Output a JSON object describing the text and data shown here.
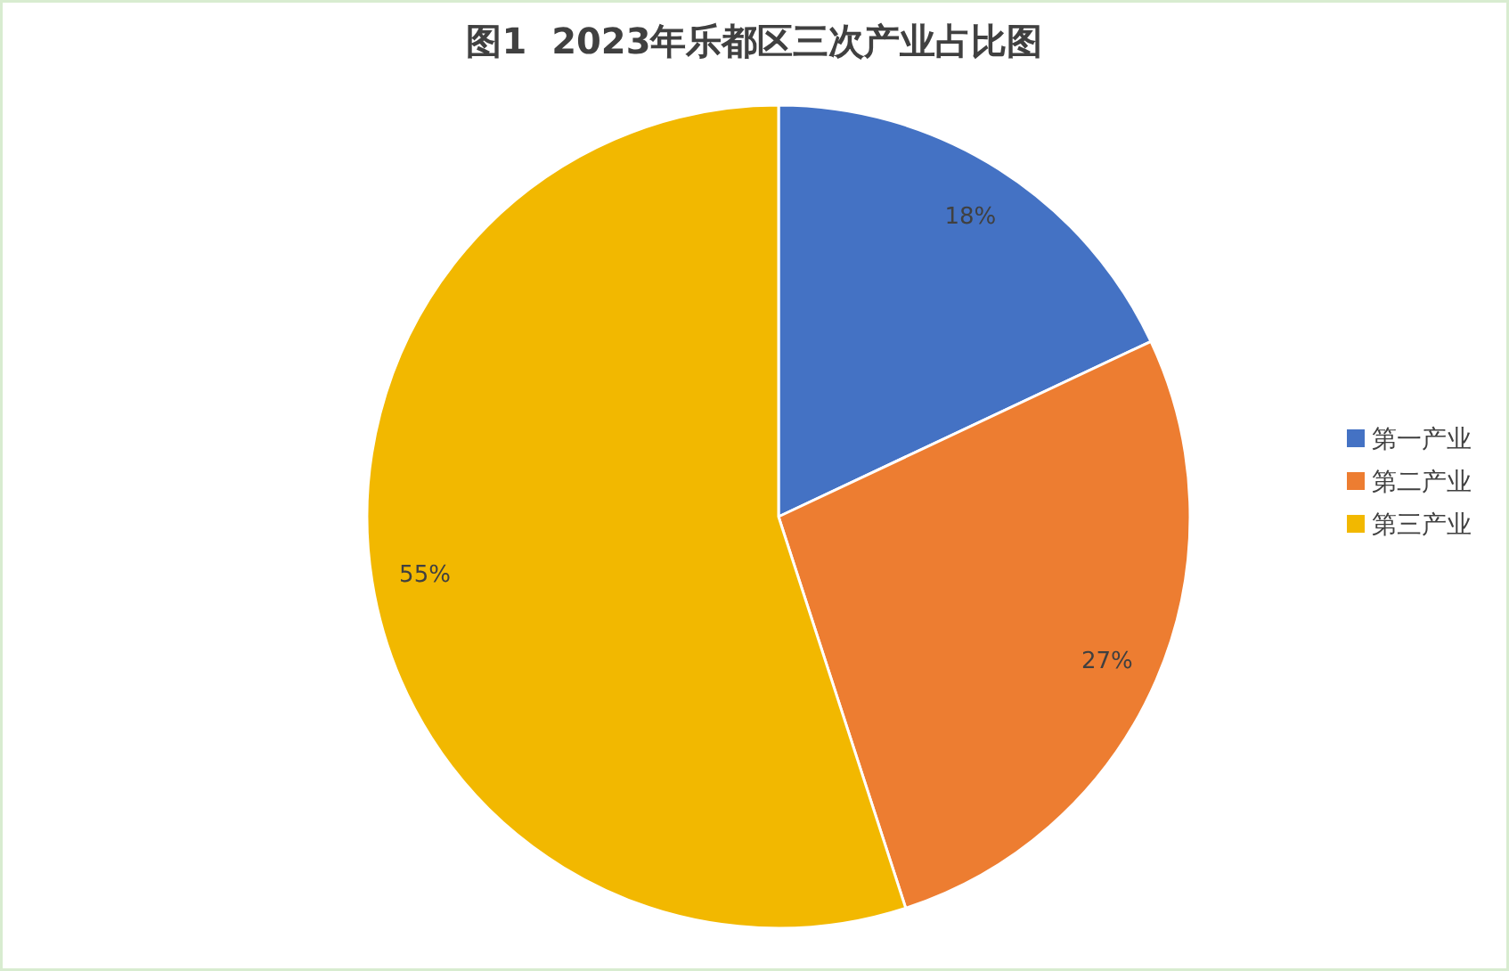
{
  "chart_data": {
    "type": "pie",
    "title": "图1  2023年乐都区三次产业占比图",
    "categories": [
      "第一产业",
      "第二产业",
      "第三产业"
    ],
    "values": [
      18,
      27,
      55
    ],
    "colors": [
      "#4472c4",
      "#ed7d31",
      "#f2b800"
    ],
    "value_labels": [
      "18%",
      "27%",
      "55%"
    ],
    "legend": "right"
  }
}
